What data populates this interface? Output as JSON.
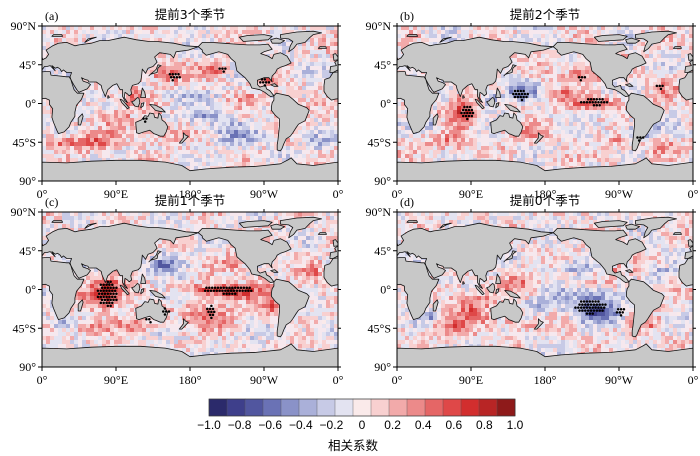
{
  "colorbar": {
    "label": "相关系数",
    "ticks": [
      "−1.0",
      "−0.8",
      "−0.6",
      "−0.4",
      "−0.2",
      "0",
      "0.2",
      "0.4",
      "0.6",
      "0.8",
      "1.0"
    ],
    "min": -1.0,
    "max": 1.0,
    "step": 0.1,
    "colors": [
      "#2b2a6b",
      "#3e3f8b",
      "#51569f",
      "#6a72b5",
      "#8a92c8",
      "#aab0d9",
      "#c7cae6",
      "#e3e3f1",
      "#faeaea",
      "#f8d0d0",
      "#f2aaaa",
      "#ec8a8a",
      "#e56666",
      "#df4848",
      "#d22e2e",
      "#b82525",
      "#8e1a1a"
    ]
  },
  "axes": {
    "lon_ticks": [
      "0°",
      "90°E",
      "180°",
      "90°W",
      "0°"
    ],
    "lat_ticks": [
      "90°N",
      "45°",
      "0°",
      "45°S",
      "90°"
    ]
  },
  "panels": [
    {
      "id": "a",
      "tag": "(a)",
      "title": "提前3个季节"
    },
    {
      "id": "b",
      "tag": "(b)",
      "title": "提前2个季节"
    },
    {
      "id": "c",
      "tag": "(c)",
      "title": "提前1个季节"
    },
    {
      "id": "d",
      "tag": "(d)",
      "title": "提前0个季节"
    }
  ],
  "colors": {
    "land": "#c8c8c8",
    "coast": "#111111",
    "frame": "#000000",
    "stipple": "#000000"
  }
}
